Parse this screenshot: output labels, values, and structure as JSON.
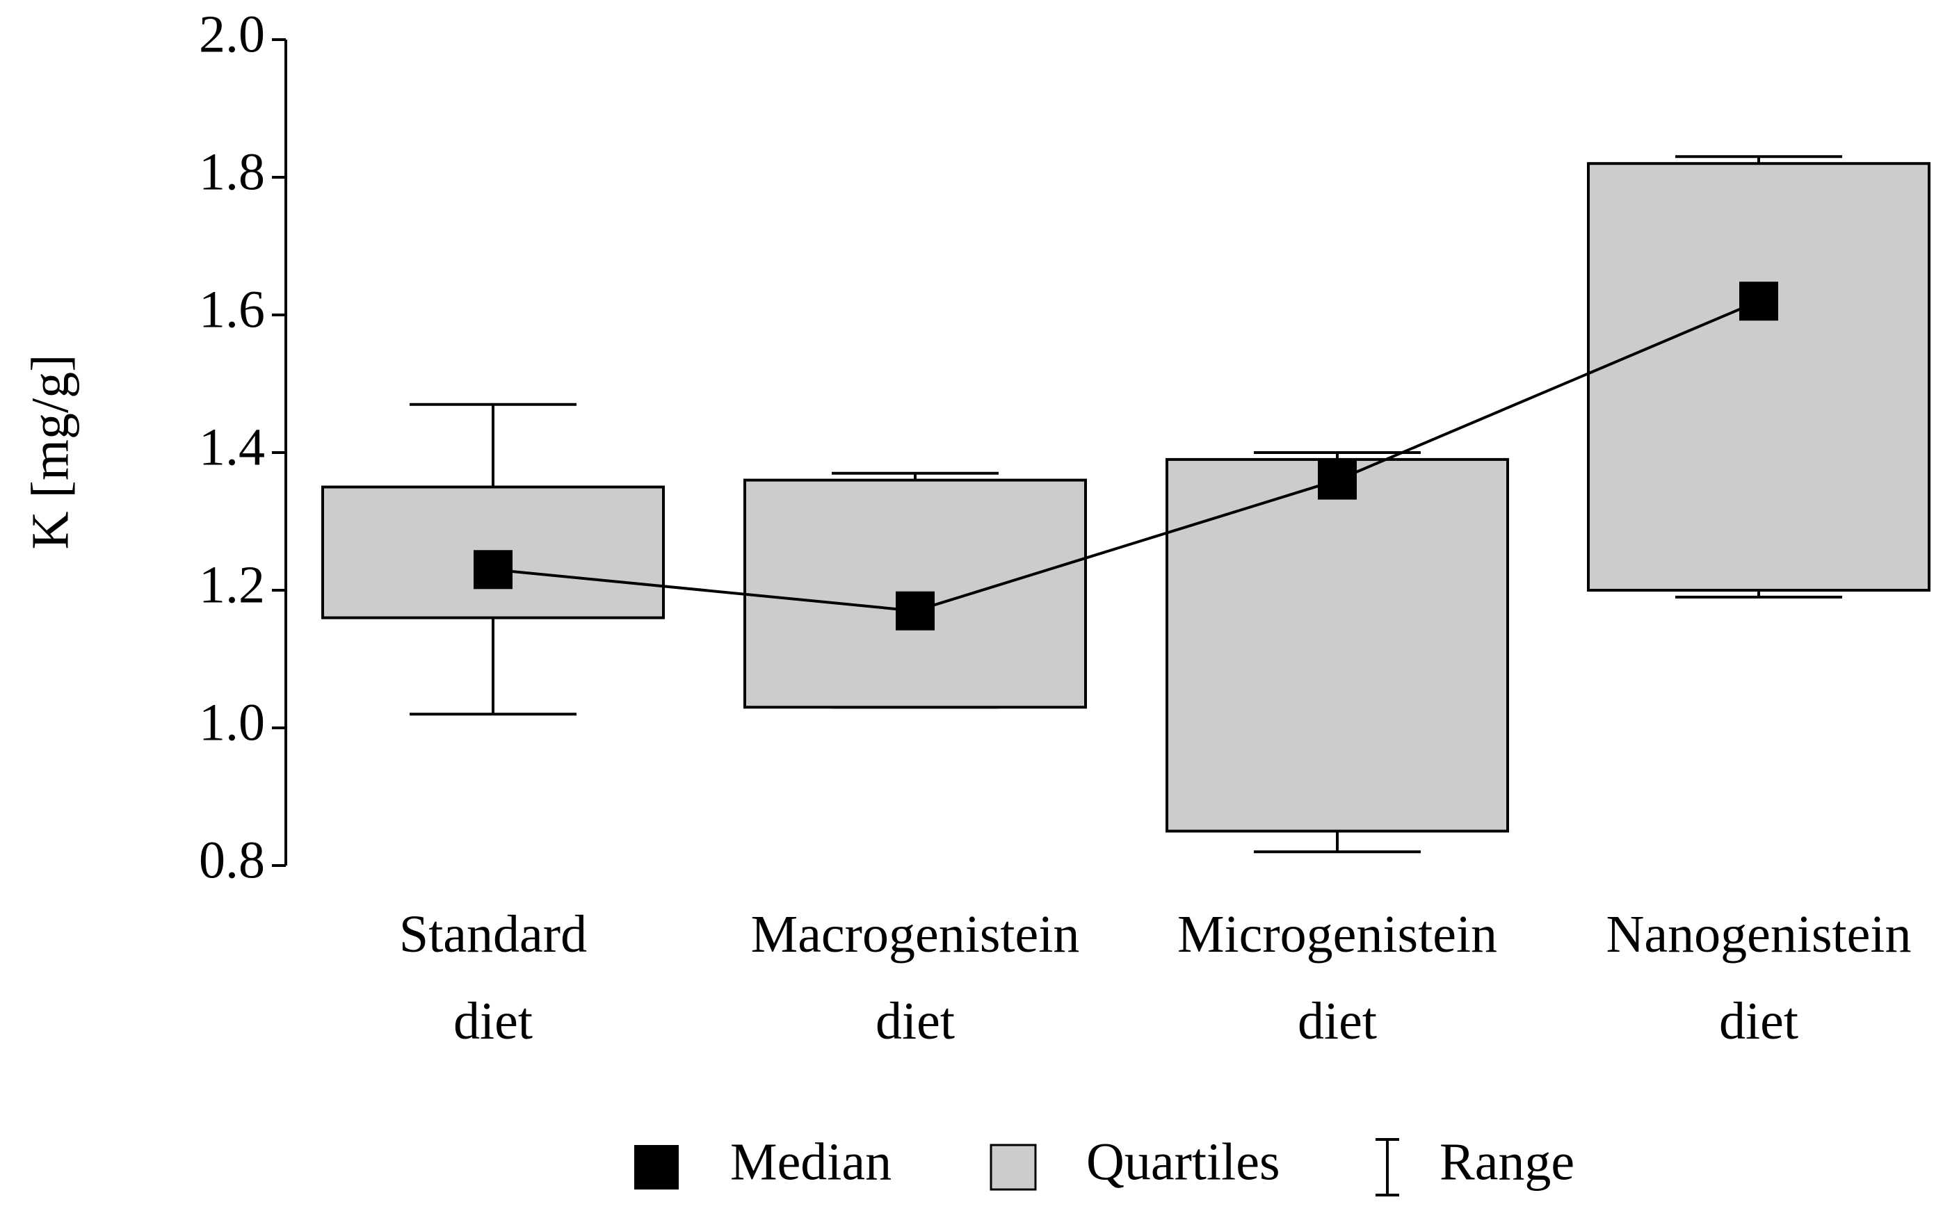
{
  "chart_data": {
    "type": "box",
    "y_label": "K [mg/g]",
    "categories": [
      "Standard diet",
      "Macrogenistein diet",
      "Microgenistein diet",
      "Nanogenistein diet"
    ],
    "min": [
      1.02,
      1.03,
      0.82,
      1.19
    ],
    "q1": [
      1.16,
      1.03,
      0.85,
      1.2
    ],
    "median": [
      1.23,
      1.17,
      1.36,
      1.62
    ],
    "q3": [
      1.35,
      1.36,
      1.39,
      1.82
    ],
    "max": [
      1.47,
      1.37,
      1.4,
      1.83
    ],
    "box_color": "#cccccc",
    "median_color": "#000000",
    "legend": {
      "median": "Median",
      "quartiles": "Quartiles",
      "range": "Range"
    },
    "ylim": [
      0.8,
      2.0
    ],
    "yticks": [
      0.8,
      {
        "value": 1.0,
        "label": "1.0"
      },
      1.2,
      1.4,
      1.6,
      1.8,
      {
        "value": 2.0,
        "label": "2.0"
      }
    ]
  }
}
